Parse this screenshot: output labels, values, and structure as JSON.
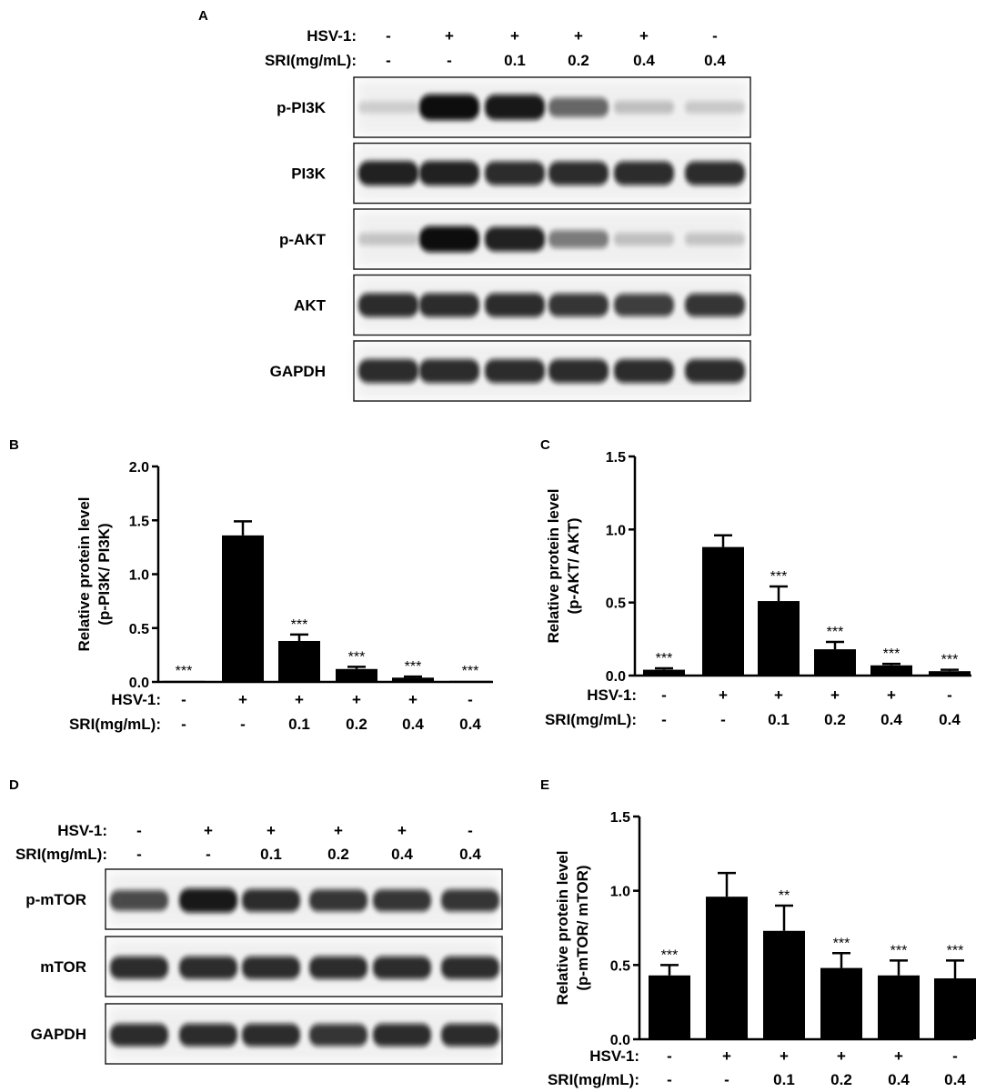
{
  "panels": [
    {
      "letter": "A",
      "type": "blot",
      "hsv_label": "HSV-1:",
      "sri_label": "SRI(mg/mL):",
      "hsv": [
        "-",
        "+",
        "+",
        "+",
        "+",
        "-"
      ],
      "sri": [
        "-",
        "-",
        "0.1",
        "0.2",
        "0.4",
        "0.4"
      ],
      "rows": [
        {
          "name": "p-PI3K",
          "intensity": [
            0.05,
            1.0,
            0.95,
            0.55,
            0.12,
            0.08
          ]
        },
        {
          "name": "PI3K",
          "intensity": [
            0.9,
            0.9,
            0.85,
            0.85,
            0.85,
            0.85
          ]
        },
        {
          "name": "p-AKT",
          "intensity": [
            0.1,
            1.0,
            0.9,
            0.45,
            0.12,
            0.1
          ]
        },
        {
          "name": "AKT",
          "intensity": [
            0.85,
            0.85,
            0.85,
            0.8,
            0.75,
            0.8
          ]
        },
        {
          "name": "GAPDH",
          "intensity": [
            0.85,
            0.85,
            0.85,
            0.85,
            0.85,
            0.85
          ]
        }
      ]
    },
    {
      "letter": "D",
      "type": "blot",
      "hsv_label": "HSV-1:",
      "sri_label": "SRI(mg/mL):",
      "hsv": [
        "-",
        "+",
        "+",
        "+",
        "+",
        "-"
      ],
      "sri": [
        "-",
        "-",
        "0.1",
        "0.2",
        "0.4",
        "0.4"
      ],
      "rows": [
        {
          "name": "p-mTOR",
          "intensity": [
            0.7,
            0.95,
            0.85,
            0.8,
            0.8,
            0.8
          ]
        },
        {
          "name": "mTOR",
          "intensity": [
            0.85,
            0.85,
            0.85,
            0.85,
            0.85,
            0.85
          ]
        },
        {
          "name": "GAPDH",
          "intensity": [
            0.85,
            0.85,
            0.85,
            0.8,
            0.85,
            0.85
          ]
        }
      ]
    }
  ],
  "chart_data": [
    {
      "letter": "B",
      "type": "bar",
      "ylabel_lines": [
        "Relative protein level",
        "(p-PI3K/ PI3K)"
      ],
      "ylim": [
        0,
        2.0
      ],
      "yticks": [
        "0.0",
        "0.5",
        "1.0",
        "1.5",
        "2.0"
      ],
      "values": [
        0.01,
        1.36,
        0.38,
        0.12,
        0.04,
        0.01
      ],
      "errors": [
        0.0,
        0.13,
        0.06,
        0.02,
        0.01,
        0.0
      ],
      "annotations": [
        "***",
        "",
        "***",
        "***",
        "***",
        "***"
      ],
      "hsv_label": "HSV-1:",
      "sri_label": "SRI(mg/mL):",
      "hsv": [
        "-",
        "+",
        "+",
        "+",
        "+",
        "-"
      ],
      "sri": [
        "-",
        "-",
        "0.1",
        "0.2",
        "0.4",
        "0.4"
      ]
    },
    {
      "letter": "C",
      "type": "bar",
      "ylabel_lines": [
        "Relative protein level",
        "(p-AKT/ AKT)"
      ],
      "ylim": [
        0,
        1.5
      ],
      "yticks": [
        "0.0",
        "0.5",
        "1.0",
        "1.5"
      ],
      "values": [
        0.04,
        0.88,
        0.51,
        0.18,
        0.07,
        0.03
      ],
      "errors": [
        0.01,
        0.08,
        0.1,
        0.05,
        0.01,
        0.01
      ],
      "annotations": [
        "***",
        "",
        "***",
        "***",
        "***",
        "***"
      ],
      "hsv_label": "HSV-1:",
      "sri_label": "SRI(mg/mL):",
      "hsv": [
        "-",
        "+",
        "+",
        "+",
        "+",
        "-"
      ],
      "sri": [
        "-",
        "-",
        "0.1",
        "0.2",
        "0.4",
        "0.4"
      ]
    },
    {
      "letter": "E",
      "type": "bar",
      "ylabel_lines": [
        "Relative protein level",
        "(p-mTOR/ mTOR)"
      ],
      "ylim": [
        0,
        1.5
      ],
      "yticks": [
        "0.0",
        "0.5",
        "1.0",
        "1.5"
      ],
      "values": [
        0.43,
        0.96,
        0.73,
        0.48,
        0.43,
        0.41
      ],
      "errors": [
        0.07,
        0.16,
        0.17,
        0.1,
        0.1,
        0.12
      ],
      "annotations": [
        "***",
        "",
        "**",
        "***",
        "***",
        "***"
      ],
      "hsv_label": "HSV-1:",
      "sri_label": "SRI(mg/mL):",
      "hsv": [
        "-",
        "+",
        "+",
        "+",
        "+",
        "-"
      ],
      "sri": [
        "-",
        "-",
        "0.1",
        "0.2",
        "0.4",
        "0.4"
      ]
    }
  ]
}
